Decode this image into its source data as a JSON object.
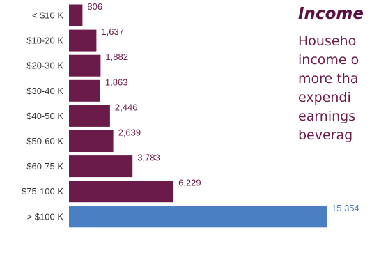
{
  "chart_data": {
    "type": "bar",
    "orientation": "horizontal",
    "categories": [
      "< $10 K",
      "$10-20 K",
      "$20-30 K",
      "$30-40 K",
      "$40-50 K",
      "$50-60 K",
      "$60-75 K",
      "$75-100 K",
      "> $100 K"
    ],
    "values": [
      806,
      1637,
      1882,
      1863,
      2446,
      2639,
      3783,
      6229,
      15354
    ],
    "value_labels": [
      "806",
      "1,637",
      "1,882",
      "1,863",
      "2,446",
      "2,639",
      "3,783",
      "6,229",
      "15,354"
    ],
    "bar_colors": [
      "#6b1b4a",
      "#6b1b4a",
      "#6b1b4a",
      "#6b1b4a",
      "#6b1b4a",
      "#6b1b4a",
      "#6b1b4a",
      "#6b1b4a",
      "#4a7fc1"
    ],
    "value_label_colors": [
      "#6b1b4a",
      "#6b1b4a",
      "#6b1b4a",
      "#6b1b4a",
      "#6b1b4a",
      "#6b1b4a",
      "#6b1b4a",
      "#6b1b4a",
      "#4a7fc1"
    ],
    "category_label_color": "#333333",
    "xlim": [
      0,
      15354
    ],
    "grid": false,
    "legend": "none"
  },
  "text_panel": {
    "heading": "Income",
    "lines": [
      "Househo",
      "income o",
      "more tha",
      "expendi",
      "earnings",
      "beverag"
    ],
    "heading_color": "#5a1040",
    "text_color": "#6b1b4a"
  }
}
